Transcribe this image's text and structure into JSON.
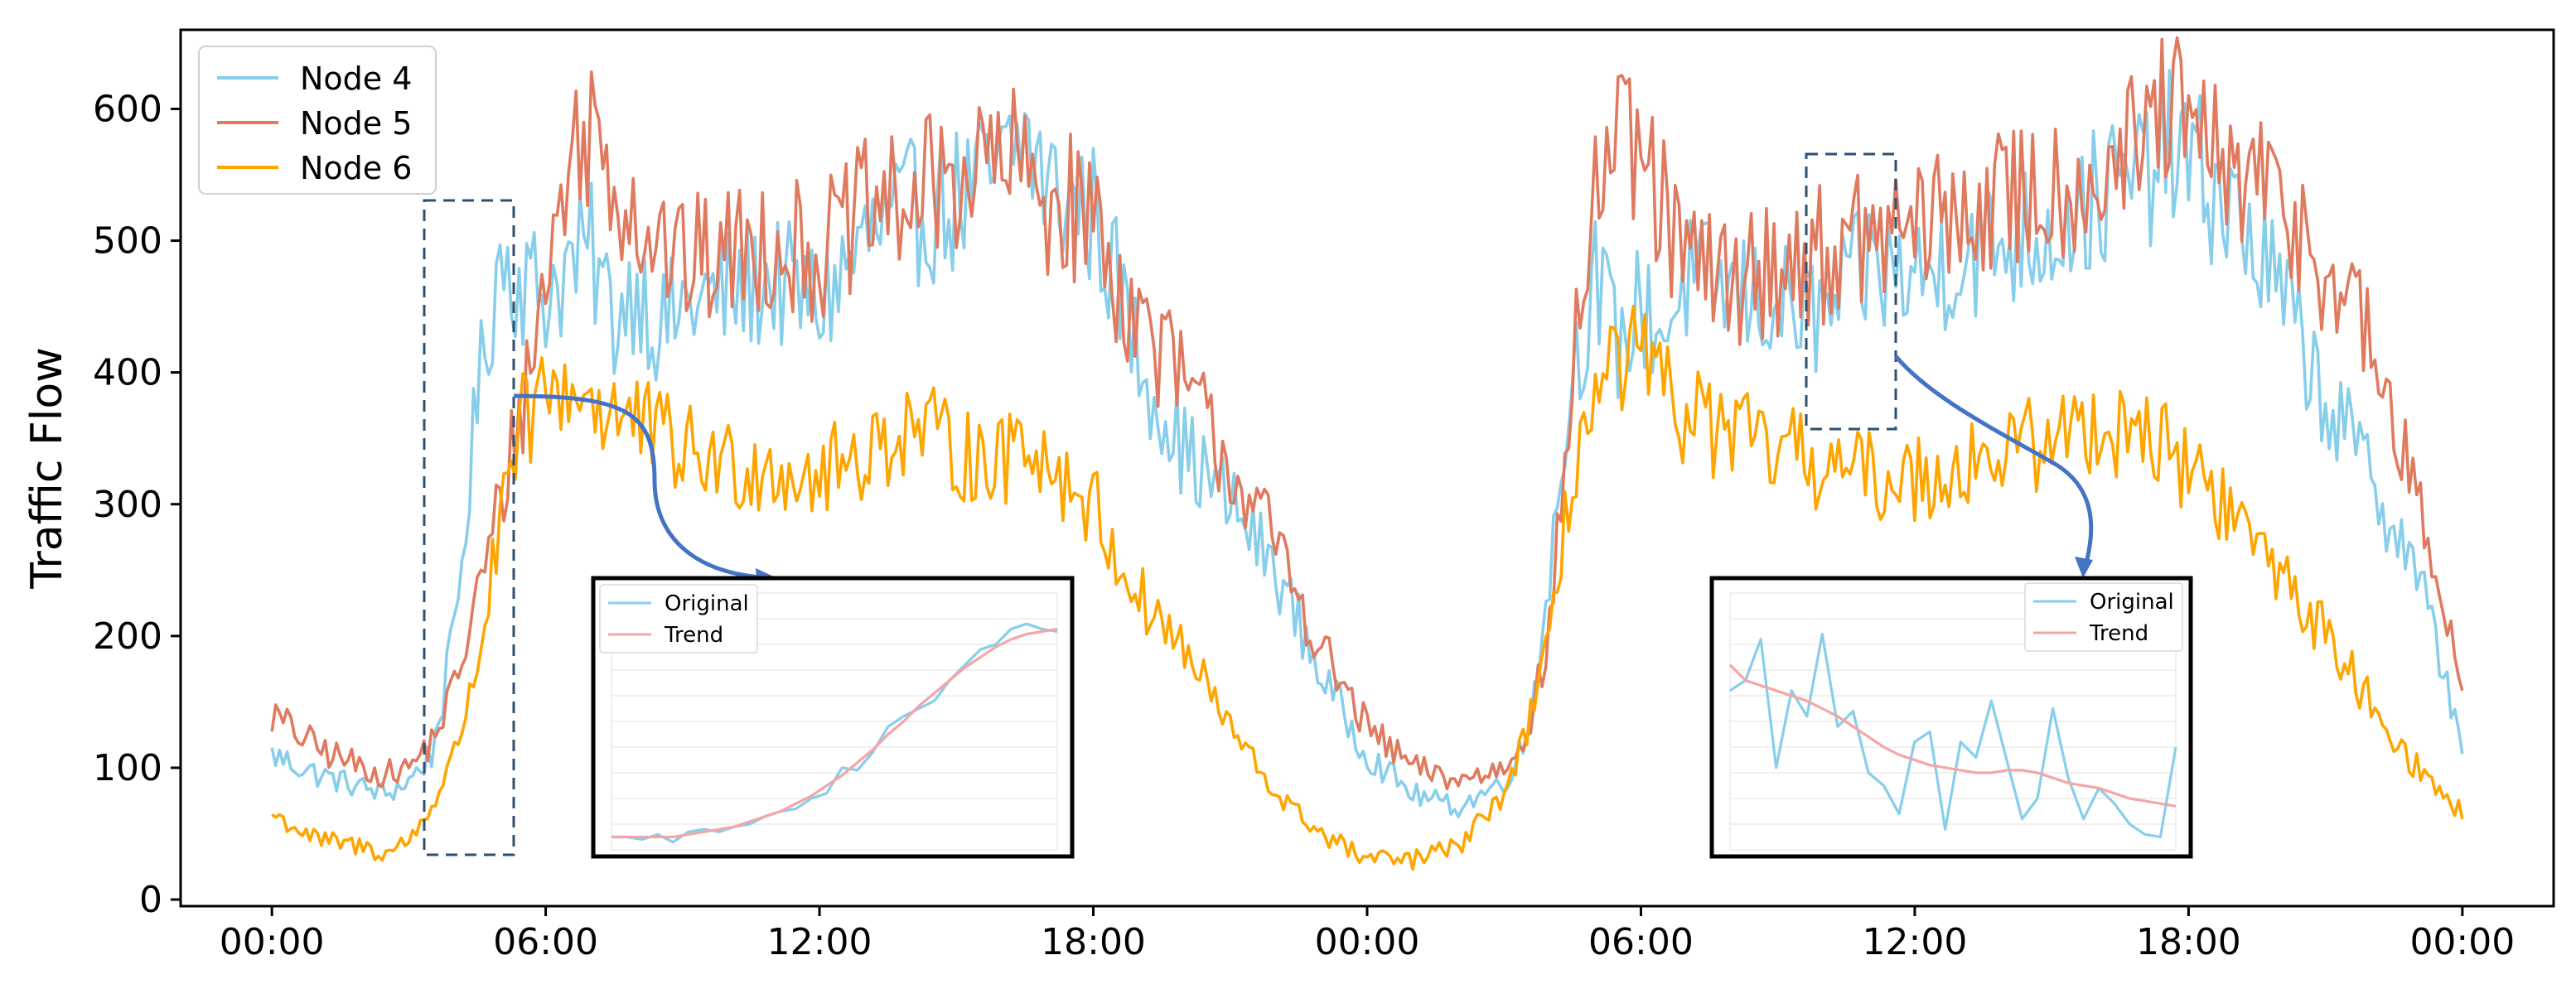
{
  "chart_data": {
    "type": "line",
    "ylabel": "Traffic Flow",
    "xlabel": "",
    "ylim": [
      -5,
      660
    ],
    "xlim": [
      -2,
      50
    ],
    "x_unit": "hours",
    "yticks": [
      0,
      100,
      200,
      300,
      400,
      500,
      600
    ],
    "xticks": [
      {
        "x": 0,
        "label": "00:00"
      },
      {
        "x": 6,
        "label": "06:00"
      },
      {
        "x": 12,
        "label": "12:00"
      },
      {
        "x": 18,
        "label": "18:00"
      },
      {
        "x": 24,
        "label": "00:00"
      },
      {
        "x": 30,
        "label": "06:00"
      },
      {
        "x": 36,
        "label": "12:00"
      },
      {
        "x": 42,
        "label": "18:00"
      },
      {
        "x": 48,
        "label": "00:00"
      }
    ],
    "legend_position": "top-left",
    "series": [
      {
        "name": "Node 4",
        "color": "#87CEEB",
        "x": [
          0,
          1,
          2,
          2.5,
          3,
          3.5,
          4,
          4.5,
          5,
          5.5,
          6,
          6.5,
          7,
          7.5,
          8,
          8.5,
          9,
          10,
          11,
          12,
          13,
          14,
          15,
          16,
          16.5,
          17,
          18,
          18.5,
          19,
          20,
          21,
          22,
          23,
          24,
          25,
          26,
          27,
          27.5,
          28,
          28.5,
          29,
          29.5,
          30,
          30.5,
          31,
          32,
          33,
          34,
          35,
          36,
          37,
          38,
          39,
          40,
          41,
          41.5,
          42,
          43,
          44,
          45,
          46,
          47,
          48
        ],
        "y": [
          110,
          95,
          85,
          80,
          90,
          110,
          200,
          380,
          490,
          470,
          460,
          480,
          490,
          440,
          470,
          430,
          450,
          460,
          470,
          450,
          500,
          520,
          530,
          550,
          580,
          540,
          520,
          470,
          410,
          340,
          300,
          250,
          170,
          110,
          80,
          70,
          90,
          120,
          250,
          400,
          470,
          420,
          450,
          430,
          470,
          460,
          450,
          440,
          480,
          470,
          490,
          500,
          510,
          530,
          550,
          570,
          560,
          520,
          460,
          380,
          320,
          250,
          120
        ]
      },
      {
        "name": "Node 5",
        "color": "#E07A5F",
        "x": [
          0,
          1,
          2,
          2.5,
          3,
          3.5,
          4,
          4.5,
          5,
          5.5,
          6,
          6.5,
          7,
          7.5,
          8,
          8.5,
          9,
          10,
          11,
          12,
          13,
          14,
          15,
          16,
          16.5,
          17,
          18,
          18.5,
          19,
          20,
          21,
          22,
          23,
          24,
          25,
          26,
          27,
          27.5,
          28,
          28.5,
          29,
          29.5,
          30,
          30.5,
          31,
          32,
          33,
          34,
          35,
          36,
          37,
          38,
          39,
          40,
          41,
          41.5,
          42,
          43,
          44,
          45,
          46,
          47,
          48
        ],
        "y": [
          140,
          115,
          100,
          95,
          100,
          120,
          160,
          230,
          300,
          380,
          470,
          560,
          590,
          550,
          520,
          500,
          480,
          490,
          500,
          490,
          520,
          530,
          550,
          560,
          550,
          530,
          520,
          470,
          440,
          390,
          330,
          270,
          190,
          130,
          100,
          90,
          100,
          130,
          200,
          400,
          540,
          570,
          560,
          520,
          480,
          470,
          480,
          490,
          500,
          510,
          520,
          530,
          540,
          550,
          570,
          600,
          580,
          550,
          530,
          480,
          420,
          300,
          170
        ]
      },
      {
        "name": "Node 6",
        "color": "#FFA500",
        "x": [
          0,
          1,
          2,
          2.5,
          3,
          3.5,
          4,
          4.5,
          5,
          5.5,
          6,
          6.5,
          7,
          7.5,
          8,
          8.5,
          9,
          10,
          11,
          12,
          13,
          14,
          15,
          16,
          16.5,
          17,
          18,
          18.5,
          19,
          20,
          21,
          22,
          23,
          24,
          25,
          26,
          27,
          27.5,
          28,
          28.5,
          29,
          29.5,
          30,
          30.5,
          31,
          32,
          33,
          34,
          35,
          36,
          37,
          38,
          39,
          40,
          41,
          41.5,
          42,
          43,
          44,
          45,
          46,
          47,
          48
        ],
        "y": [
          65,
          45,
          40,
          35,
          45,
          70,
          110,
          180,
          280,
          360,
          380,
          390,
          380,
          370,
          360,
          350,
          340,
          330,
          330,
          320,
          340,
          360,
          340,
          330,
          360,
          330,
          300,
          260,
          230,
          190,
          130,
          80,
          50,
          30,
          30,
          40,
          80,
          130,
          190,
          330,
          380,
          400,
          410,
          380,
          370,
          350,
          340,
          330,
          320,
          320,
          330,
          340,
          350,
          360,
          360,
          340,
          330,
          290,
          250,
          200,
          150,
          100,
          65
        ]
      }
    ],
    "insets": [
      {
        "type": "line",
        "legend_position": "top-left",
        "series": [
          {
            "name": "Original",
            "color": "#87CEEB",
            "x": [
              0,
              1,
              2,
              3,
              4,
              5,
              6,
              7,
              8,
              9,
              10,
              11,
              12,
              13,
              14,
              15,
              16,
              17,
              18,
              19,
              20,
              21,
              22,
              23,
              24,
              25,
              26,
              27,
              28,
              29
            ],
            "y": [
              0.05,
              0.05,
              0.04,
              0.06,
              0.03,
              0.07,
              0.08,
              0.07,
              0.09,
              0.1,
              0.13,
              0.15,
              0.16,
              0.2,
              0.22,
              0.32,
              0.31,
              0.38,
              0.48,
              0.52,
              0.55,
              0.58,
              0.66,
              0.72,
              0.78,
              0.8,
              0.86,
              0.88,
              0.86,
              0.85
            ]
          },
          {
            "name": "Trend",
            "color": "#F4A6A6",
            "x": [
              0,
              1,
              2,
              3,
              4,
              5,
              6,
              7,
              8,
              9,
              10,
              11,
              12,
              13,
              14,
              15,
              16,
              17,
              18,
              19,
              20,
              21,
              22,
              23,
              24,
              25,
              26,
              27,
              28,
              29
            ],
            "y": [
              0.05,
              0.05,
              0.05,
              0.05,
              0.05,
              0.06,
              0.07,
              0.08,
              0.09,
              0.11,
              0.13,
              0.15,
              0.18,
              0.21,
              0.25,
              0.29,
              0.34,
              0.39,
              0.45,
              0.5,
              0.56,
              0.61,
              0.66,
              0.71,
              0.75,
              0.79,
              0.82,
              0.84,
              0.85,
              0.86
            ]
          }
        ]
      },
      {
        "type": "line",
        "legend_position": "top-right",
        "series": [
          {
            "name": "Original",
            "color": "#87CEEB",
            "x": [
              0,
              1,
              2,
              3,
              4,
              5,
              6,
              7,
              8,
              9,
              10,
              11,
              12,
              13,
              14,
              15,
              16,
              17,
              18,
              19,
              20,
              21,
              22,
              23,
              24,
              25,
              26,
              27,
              28,
              29
            ],
            "y": [
              0.62,
              0.66,
              0.82,
              0.32,
              0.62,
              0.52,
              0.84,
              0.48,
              0.54,
              0.3,
              0.25,
              0.14,
              0.42,
              0.46,
              0.08,
              0.42,
              0.36,
              0.58,
              0.35,
              0.12,
              0.2,
              0.55,
              0.28,
              0.12,
              0.24,
              0.18,
              0.1,
              0.06,
              0.05,
              0.4
            ]
          },
          {
            "name": "Trend",
            "color": "#F4A6A6",
            "x": [
              0,
              1,
              2,
              3,
              4,
              5,
              6,
              7,
              8,
              9,
              10,
              11,
              12,
              13,
              14,
              15,
              16,
              17,
              18,
              19,
              20,
              21,
              22,
              23,
              24,
              25,
              26,
              27,
              28,
              29
            ],
            "y": [
              0.72,
              0.66,
              0.64,
              0.62,
              0.6,
              0.58,
              0.55,
              0.52,
              0.48,
              0.44,
              0.4,
              0.37,
              0.35,
              0.33,
              0.32,
              0.31,
              0.3,
              0.3,
              0.31,
              0.31,
              0.3,
              0.28,
              0.26,
              0.25,
              0.24,
              0.22,
              0.2,
              0.19,
              0.18,
              0.17
            ]
          }
        ]
      }
    ]
  }
}
